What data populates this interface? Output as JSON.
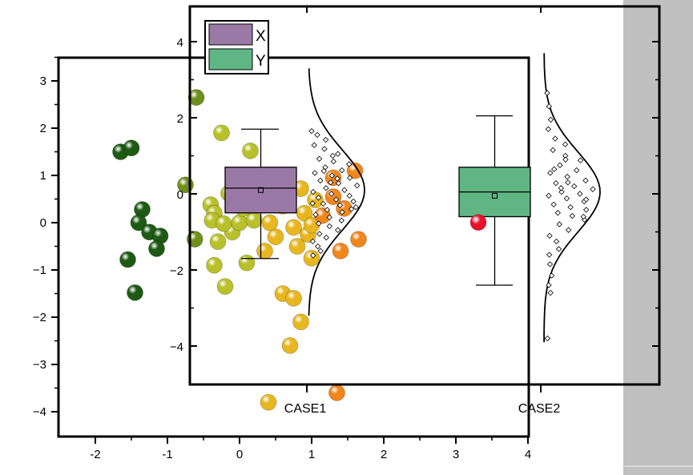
{
  "colors": {
    "background": "#ffffff",
    "gray_panel": "#c0c0c0",
    "x_box": "#9b79a6",
    "y_box": "#5fb584",
    "axis": "#000000",
    "outlier": "#e8102a"
  },
  "chart_data": [
    {
      "type": "scatter",
      "description_role": "background scatter",
      "xlim": [
        -2.5,
        4
      ],
      "ylim": [
        -4.5,
        3.5
      ],
      "x_ticks": [
        "-2",
        "-1",
        "0",
        "1",
        "2",
        "3",
        "4"
      ],
      "y_ticks": [
        "3",
        "2",
        "1",
        "0",
        "−1",
        "−2",
        "−3",
        "−4"
      ],
      "color_scale": [
        "#1e5a14",
        "#6f8f1d",
        "#b9c12a",
        "#e8b71f",
        "#f0861c"
      ],
      "points": [
        [
          -1.65,
          1.5
        ],
        [
          -1.5,
          1.58
        ],
        [
          -1.35,
          0.28
        ],
        [
          -1.4,
          0.0
        ],
        [
          -1.25,
          -0.2
        ],
        [
          -1.1,
          -0.28
        ],
        [
          -1.15,
          -0.55
        ],
        [
          -1.55,
          -0.78
        ],
        [
          -1.45,
          -1.48
        ],
        [
          -0.75,
          0.8
        ],
        [
          -0.6,
          2.65
        ],
        [
          -0.62,
          -0.35
        ],
        [
          -0.4,
          0.38
        ],
        [
          -0.25,
          1.9
        ],
        [
          -0.35,
          0.2
        ],
        [
          -0.15,
          0.62
        ],
        [
          0.15,
          1.52
        ],
        [
          -0.1,
          -0.2
        ],
        [
          -0.38,
          0.05
        ],
        [
          -0.22,
          -0.02
        ],
        [
          -0.3,
          -0.4
        ],
        [
          0.0,
          0.0
        ],
        [
          -0.35,
          -0.9
        ],
        [
          -0.2,
          -1.35
        ],
        [
          0.1,
          -0.85
        ],
        [
          0.35,
          -0.6
        ],
        [
          0.5,
          -0.3
        ],
        [
          0.05,
          0.3
        ],
        [
          0.2,
          0.05
        ],
        [
          0.42,
          0.0
        ],
        [
          0.6,
          0.35
        ],
        [
          0.85,
          0.72
        ],
        [
          0.9,
          0.2
        ],
        [
          0.75,
          -0.1
        ],
        [
          0.95,
          -0.25
        ],
        [
          0.8,
          -0.5
        ],
        [
          1.0,
          -0.05
        ],
        [
          1.15,
          0.15
        ],
        [
          1.45,
          0.3
        ],
        [
          1.3,
          0.55
        ],
        [
          1.6,
          1.1
        ],
        [
          1.4,
          -0.6
        ],
        [
          1.3,
          0.95
        ],
        [
          1.65,
          -0.35
        ],
        [
          1.0,
          -0.75
        ],
        [
          0.6,
          -1.5
        ],
        [
          0.75,
          -1.6
        ],
        [
          0.85,
          -2.1
        ],
        [
          0.7,
          -2.6
        ],
        [
          0.4,
          -3.8
        ],
        [
          1.35,
          -3.6
        ],
        [
          1.05,
          0.48
        ],
        [
          0.6,
          0.55
        ]
      ]
    },
    {
      "type": "box",
      "description_role": "half box + half violin + jitter",
      "ylim": [
        -5,
        5
      ],
      "y_ticks": [
        "4",
        "2",
        "0",
        "−2",
        "−4"
      ],
      "categories": [
        "CASE1",
        "CASE2"
      ],
      "legend": [
        "X",
        "Y"
      ],
      "legend_position": "top-left",
      "series": [
        {
          "name": "X",
          "category": "CASE1",
          "whisker_low": -1.7,
          "q1": -0.5,
          "median": 0.15,
          "mean": 0.1,
          "q3": 0.7,
          "whisker_high": 1.7,
          "curve_range": [
            -3.2,
            3.3
          ],
          "points": [
            1.65,
            1.55,
            1.42,
            1.28,
            1.18,
            1.05,
            0.92,
            0.85,
            0.78,
            0.7,
            0.62,
            0.55,
            0.48,
            0.42,
            0.35,
            0.28,
            0.22,
            0.15,
            0.1,
            0.05,
            0.0,
            -0.05,
            -0.1,
            -0.15,
            -0.2,
            -0.26,
            -0.3,
            -0.35,
            -0.42,
            -0.48,
            -0.55,
            -0.62,
            -0.7,
            -0.78,
            -0.85,
            -0.95,
            -1.05,
            -1.15,
            -1.25,
            -1.38,
            -1.5,
            -1.62,
            0.4,
            -0.4,
            0.6,
            1.0,
            -0.25,
            0.3
          ]
        },
        {
          "name": "Y",
          "category": "CASE2",
          "whisker_low": -2.4,
          "q1": -0.6,
          "median": 0.05,
          "mean": -0.05,
          "q3": 0.7,
          "whisker_high": 2.05,
          "curve_range": [
            -3.9,
            3.7
          ],
          "outlier": -0.75,
          "points": [
            2.65,
            2.3,
            1.95,
            1.7,
            1.45,
            1.3,
            1.15,
            1.0,
            0.88,
            0.75,
            0.62,
            0.55,
            0.45,
            0.35,
            0.28,
            0.2,
            0.12,
            0.05,
            0.0,
            -0.05,
            -0.12,
            -0.2,
            -0.28,
            -0.35,
            -0.42,
            -0.5,
            -0.58,
            -0.68,
            -0.8,
            -0.95,
            -1.1,
            -1.25,
            -1.45,
            -1.6,
            -1.85,
            -2.15,
            -2.4,
            -2.6,
            -3.8,
            0.3,
            -0.15,
            0.65,
            0.9,
            -0.6,
            0.15
          ]
        }
      ]
    }
  ]
}
